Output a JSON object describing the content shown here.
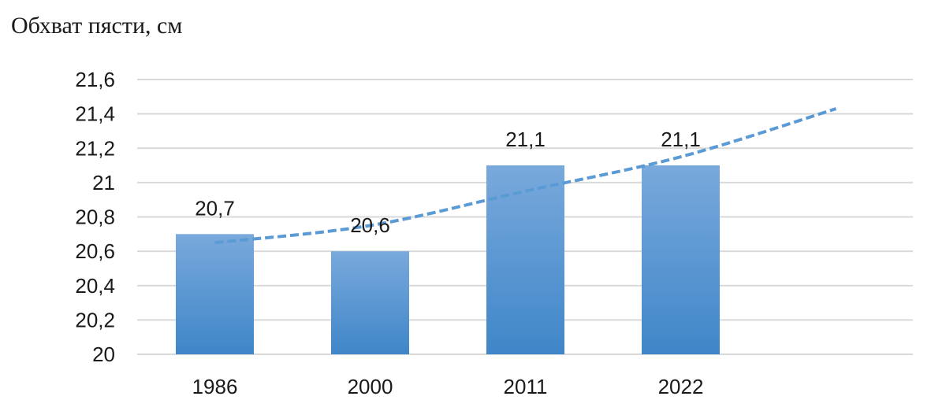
{
  "chart_data": {
    "type": "bar",
    "title": "Обхват пясти, см",
    "categories": [
      "1986",
      "2000",
      "2011",
      "2022"
    ],
    "values": [
      20.7,
      20.6,
      21.1,
      21.1
    ],
    "data_labels": [
      "20,7",
      "20,6",
      "21,1",
      "21,1"
    ],
    "ylim": [
      20,
      21.6
    ],
    "yticks": [
      20,
      20.2,
      20.4,
      20.6,
      20.8,
      21,
      21.2,
      21.4,
      21.6
    ],
    "ytick_labels": [
      "20",
      "20,2",
      "20,4",
      "20,6",
      "20,8",
      "21",
      "21,2",
      "21,4",
      "21,6"
    ],
    "grid": true,
    "legend": "none",
    "trendline": {
      "type": "polynomial",
      "style": "dashed",
      "x": [
        1,
        2,
        3,
        4,
        5
      ],
      "y": [
        20.65,
        20.75,
        20.95,
        21.15,
        21.43
      ]
    },
    "colors": {
      "bar_top": "#79a9dc",
      "bar_bottom": "#3f86c8",
      "trend": "#5b9bd5",
      "grid": "#d9d9d9"
    }
  }
}
